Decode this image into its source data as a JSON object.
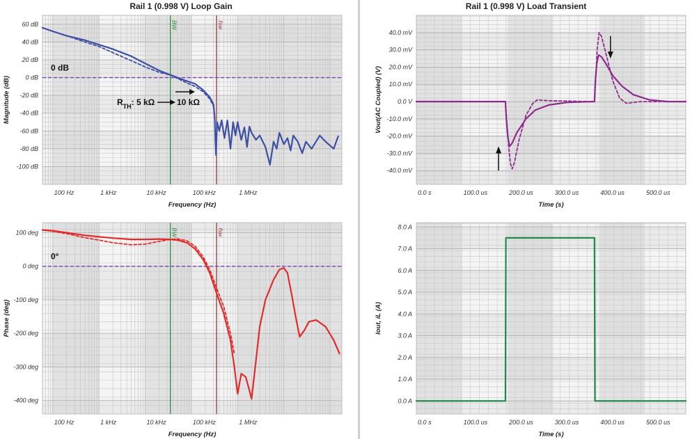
{
  "titles": {
    "left": "Rail 1 (0.998 V) Loop Gain",
    "right": "Rail 1 (0.998 V) Load Transient"
  },
  "colors": {
    "magnitude": "#3d4fa3",
    "phase": "#e32a2a",
    "vout": "#8e2a8e",
    "iout": "#1f8a4a",
    "reference": "#7b3fb5",
    "bw_marker": "#2e8b3d",
    "fsw_marker": "#8b3a3a"
  },
  "chart_data": [
    {
      "id": "magnitude",
      "type": "line",
      "xscale": "log",
      "xlim": [
        60,
        180000000
      ],
      "ylim": [
        -120,
        70
      ],
      "ylabel": "Magnitude (dB)",
      "xlabel": "Frequency (Hz)",
      "xticks": [
        {
          "v": 100,
          "l": "100 Hz"
        },
        {
          "v": 1000,
          "l": "1 kHz"
        },
        {
          "v": 10000,
          "l": "10 kHz"
        },
        {
          "v": 100000,
          "l": "100 kHz"
        },
        {
          "v": 1000000,
          "l": "1 MHz"
        }
      ],
      "yticks": [
        {
          "v": 60,
          "l": "60 dB"
        },
        {
          "v": 40,
          "l": "40 dB"
        },
        {
          "v": 20,
          "l": "20 dB"
        },
        {
          "v": 0,
          "l": "0 dB"
        },
        {
          "v": -20,
          "l": "-20 dB"
        },
        {
          "v": -40,
          "l": "-40 dB"
        },
        {
          "v": -60,
          "l": "-60 dB"
        },
        {
          "v": -80,
          "l": "-80 dB"
        },
        {
          "v": -100,
          "l": "-100 dB"
        }
      ],
      "grid": true,
      "vlines": [
        {
          "x": 35000,
          "label": "BW",
          "role": "bw"
        },
        {
          "x": 350000,
          "label": "fsw",
          "role": "fsw"
        }
      ],
      "hlines": [
        {
          "y": 0,
          "label": "0 dB"
        }
      ],
      "annotations": [
        {
          "text": "RTH: 5 kΩ → 10 kΩ"
        }
      ],
      "series": [
        {
          "style": "solid",
          "points": [
            [
              60,
              56
            ],
            [
              100,
              52
            ],
            [
              200,
              47
            ],
            [
              500,
              42
            ],
            [
              1000,
              37
            ],
            [
              2000,
              32
            ],
            [
              5000,
              24
            ],
            [
              10000,
              16
            ],
            [
              20000,
              8
            ],
            [
              35000,
              3
            ],
            [
              50000,
              0
            ],
            [
              80000,
              -4
            ],
            [
              120000,
              -7
            ],
            [
              180000,
              -14
            ],
            [
              250000,
              -22
            ],
            [
              300000,
              -30
            ],
            [
              320000,
              -45
            ],
            [
              330000,
              -70
            ],
            [
              340000,
              -87
            ],
            [
              360000,
              -50
            ],
            [
              400000,
              -60
            ],
            [
              450000,
              -48
            ],
            [
              520000,
              -68
            ],
            [
              600000,
              -48
            ],
            [
              700000,
              -80
            ],
            [
              800000,
              -50
            ],
            [
              900000,
              -65
            ],
            [
              1000000,
              -50
            ],
            [
              1200000,
              -70
            ],
            [
              1400000,
              -56
            ],
            [
              1600000,
              -78
            ],
            [
              1800000,
              -55
            ],
            [
              2000000,
              -62
            ],
            [
              2500000,
              -70
            ],
            [
              3000000,
              -65
            ],
            [
              4000000,
              -78
            ],
            [
              5000000,
              -98
            ],
            [
              6000000,
              -72
            ],
            [
              7000000,
              -80
            ],
            [
              8000000,
              -62
            ],
            [
              10000000,
              -75
            ],
            [
              12000000,
              -68
            ],
            [
              14000000,
              -82
            ],
            [
              16000000,
              -65
            ],
            [
              20000000,
              -72
            ],
            [
              25000000,
              -85
            ],
            [
              30000000,
              -72
            ],
            [
              40000000,
              -80
            ],
            [
              60000000,
              -65
            ],
            [
              80000000,
              -72
            ],
            [
              120000000,
              -80
            ],
            [
              150000000,
              -66
            ]
          ]
        },
        {
          "style": "dashed",
          "points": [
            [
              60,
              56
            ],
            [
              100,
              52
            ],
            [
              200,
              47
            ],
            [
              500,
              40
            ],
            [
              1000,
              35
            ],
            [
              2000,
              28
            ],
            [
              5000,
              19
            ],
            [
              10000,
              12
            ],
            [
              20000,
              6
            ],
            [
              35000,
              3
            ],
            [
              50000,
              -1
            ],
            [
              80000,
              -6
            ],
            [
              120000,
              -10
            ],
            [
              180000,
              -16
            ],
            [
              250000,
              -24
            ],
            [
              300000,
              -32
            ]
          ]
        }
      ]
    },
    {
      "id": "phase",
      "type": "line",
      "xscale": "log",
      "xlim": [
        60,
        180000000
      ],
      "ylim": [
        -440,
        130
      ],
      "ylabel": "Phase (deg)",
      "xlabel": "Frequency (Hz)",
      "xticks": [
        {
          "v": 100,
          "l": "100 Hz"
        },
        {
          "v": 1000,
          "l": "1 kHz"
        },
        {
          "v": 10000,
          "l": "10 kHz"
        },
        {
          "v": 100000,
          "l": "100 kHz"
        },
        {
          "v": 1000000,
          "l": "1 MHz"
        }
      ],
      "yticks": [
        {
          "v": 100,
          "l": "100 deg"
        },
        {
          "v": 0,
          "l": "0 deg"
        },
        {
          "v": -100,
          "l": "-100 deg"
        },
        {
          "v": -200,
          "l": "-200 deg"
        },
        {
          "v": -300,
          "l": "-300 deg"
        },
        {
          "v": -400,
          "l": "-400 deg"
        }
      ],
      "grid": true,
      "vlines": [
        {
          "x": 35000,
          "label": "BW",
          "role": "bw"
        },
        {
          "x": 350000,
          "label": "fsw",
          "role": "fsw"
        }
      ],
      "hlines": [
        {
          "y": 0,
          "label": "0°"
        }
      ],
      "series": [
        {
          "style": "solid",
          "points": [
            [
              60,
              108
            ],
            [
              100,
              106
            ],
            [
              200,
              100
            ],
            [
              500,
              92
            ],
            [
              1000,
              88
            ],
            [
              2000,
              84
            ],
            [
              5000,
              80
            ],
            [
              10000,
              80
            ],
            [
              20000,
              81
            ],
            [
              35000,
              80
            ],
            [
              50000,
              78
            ],
            [
              80000,
              70
            ],
            [
              120000,
              52
            ],
            [
              180000,
              20
            ],
            [
              250000,
              -20
            ],
            [
              350000,
              -80
            ],
            [
              500000,
              -140
            ],
            [
              700000,
              -220
            ],
            [
              850000,
              -300
            ],
            [
              1000000,
              -380
            ],
            [
              1200000,
              -320
            ],
            [
              1500000,
              -330
            ],
            [
              1800000,
              -370
            ],
            [
              2000000,
              -395
            ],
            [
              2500000,
              -280
            ],
            [
              3000000,
              -180
            ],
            [
              4000000,
              -100
            ],
            [
              6000000,
              -40
            ],
            [
              8000000,
              -10
            ],
            [
              10000000,
              -5
            ],
            [
              12000000,
              -20
            ],
            [
              15000000,
              -90
            ],
            [
              18000000,
              -150
            ],
            [
              22000000,
              -210
            ],
            [
              28000000,
              -190
            ],
            [
              35000000,
              -165
            ],
            [
              50000000,
              -160
            ],
            [
              80000000,
              -180
            ],
            [
              120000000,
              -220
            ],
            [
              160000000,
              -260
            ]
          ]
        },
        {
          "style": "dashed",
          "points": [
            [
              60,
              108
            ],
            [
              100,
              104
            ],
            [
              200,
              97
            ],
            [
              500,
              85
            ],
            [
              1000,
              78
            ],
            [
              2000,
              70
            ],
            [
              5000,
              64
            ],
            [
              10000,
              66
            ],
            [
              20000,
              74
            ],
            [
              35000,
              80
            ],
            [
              50000,
              82
            ],
            [
              80000,
              76
            ],
            [
              120000,
              60
            ],
            [
              180000,
              28
            ],
            [
              250000,
              -10
            ],
            [
              350000,
              -65
            ],
            [
              500000,
              -120
            ],
            [
              700000,
              -200
            ],
            [
              850000,
              -260
            ]
          ]
        }
      ]
    },
    {
      "id": "vout",
      "type": "line",
      "xlim": [
        0,
        590
      ],
      "ylim": [
        -48,
        50
      ],
      "ylabel": "Vout(AC Coupled) (V)",
      "xlabel": "Time (s)",
      "xticks": [
        {
          "v": 0,
          "l": "0.0 s"
        },
        {
          "v": 100,
          "l": "100.0 us"
        },
        {
          "v": 200,
          "l": "200.0 us"
        },
        {
          "v": 300,
          "l": "300.0 us"
        },
        {
          "v": 400,
          "l": "400.0 us"
        },
        {
          "v": 500,
          "l": "500.0 us"
        }
      ],
      "yticks": [
        {
          "v": 40,
          "l": "40.0 mV"
        },
        {
          "v": 30,
          "l": "30.0 mV"
        },
        {
          "v": 20,
          "l": "20.0 mV"
        },
        {
          "v": 10,
          "l": "10.0 mV"
        },
        {
          "v": 0,
          "l": "0.0 V"
        },
        {
          "v": -10,
          "l": "-10.0 mV"
        },
        {
          "v": -20,
          "l": "-20.0 mV"
        },
        {
          "v": -30,
          "l": "-30.0 mV"
        },
        {
          "v": -40,
          "l": "-40.0 mV"
        }
      ],
      "grid": true,
      "series": [
        {
          "style": "solid",
          "points": [
            [
              0,
              0
            ],
            [
              195,
              0
            ],
            [
              197,
              -10
            ],
            [
              200,
              -20
            ],
            [
              204,
              -26
            ],
            [
              210,
              -24
            ],
            [
              220,
              -18
            ],
            [
              240,
              -10
            ],
            [
              260,
              -5
            ],
            [
              290,
              -2
            ],
            [
              330,
              -0.5
            ],
            [
              385,
              0
            ],
            [
              390,
              0
            ],
            [
              392,
              12
            ],
            [
              395,
              22
            ],
            [
              399,
              27
            ],
            [
              405,
              26
            ],
            [
              415,
              22
            ],
            [
              430,
              15
            ],
            [
              450,
              9
            ],
            [
              475,
              4
            ],
            [
              510,
              1
            ],
            [
              550,
              0
            ],
            [
              590,
              0
            ]
          ]
        },
        {
          "style": "dashed",
          "points": [
            [
              0,
              0
            ],
            [
              195,
              0
            ],
            [
              198,
              -12
            ],
            [
              202,
              -26
            ],
            [
              206,
              -36
            ],
            [
              210,
              -39
            ],
            [
              215,
              -35
            ],
            [
              225,
              -22
            ],
            [
              240,
              -8
            ],
            [
              255,
              -1
            ],
            [
              265,
              1
            ],
            [
              290,
              0.5
            ],
            [
              385,
              0
            ],
            [
              390,
              0
            ],
            [
              393,
              15
            ],
            [
              396,
              30
            ],
            [
              400,
              40
            ],
            [
              405,
              38
            ],
            [
              415,
              28
            ],
            [
              430,
              12
            ],
            [
              445,
              2
            ],
            [
              460,
              -1
            ],
            [
              490,
              0
            ],
            [
              590,
              0
            ]
          ]
        }
      ]
    },
    {
      "id": "iout",
      "type": "line",
      "xlim": [
        0,
        590
      ],
      "ylim": [
        -0.6,
        8.2
      ],
      "ylabel": "Iout, iL (A)",
      "xlabel": "Time (s)",
      "xticks": [
        {
          "v": 0,
          "l": "0.0 s"
        },
        {
          "v": 100,
          "l": "100.0 us"
        },
        {
          "v": 200,
          "l": "200.0 us"
        },
        {
          "v": 300,
          "l": "300.0 us"
        },
        {
          "v": 400,
          "l": "400.0 us"
        },
        {
          "v": 500,
          "l": "500.0 us"
        }
      ],
      "yticks": [
        {
          "v": 8,
          "l": "8.0 A"
        },
        {
          "v": 7,
          "l": "7.0 A"
        },
        {
          "v": 6,
          "l": "6.0 A"
        },
        {
          "v": 5,
          "l": "5.0 A"
        },
        {
          "v": 4,
          "l": "4.0 A"
        },
        {
          "v": 3,
          "l": "3.0 A"
        },
        {
          "v": 2,
          "l": "2.0 A"
        },
        {
          "v": 1,
          "l": "1.0 A"
        },
        {
          "v": 0,
          "l": "0.0 A"
        }
      ],
      "grid": true,
      "series": [
        {
          "style": "solid",
          "points": [
            [
              0,
              0
            ],
            [
              195,
              0
            ],
            [
              196,
              7.5
            ],
            [
              390,
              7.5
            ],
            [
              391,
              0
            ],
            [
              590,
              0
            ]
          ]
        },
        {
          "style": "dashed",
          "points": [
            [
              0,
              0
            ],
            [
              195,
              0
            ],
            [
              196,
              7.5
            ],
            [
              390,
              7.5
            ],
            [
              391,
              0
            ],
            [
              590,
              0
            ]
          ]
        }
      ]
    }
  ]
}
